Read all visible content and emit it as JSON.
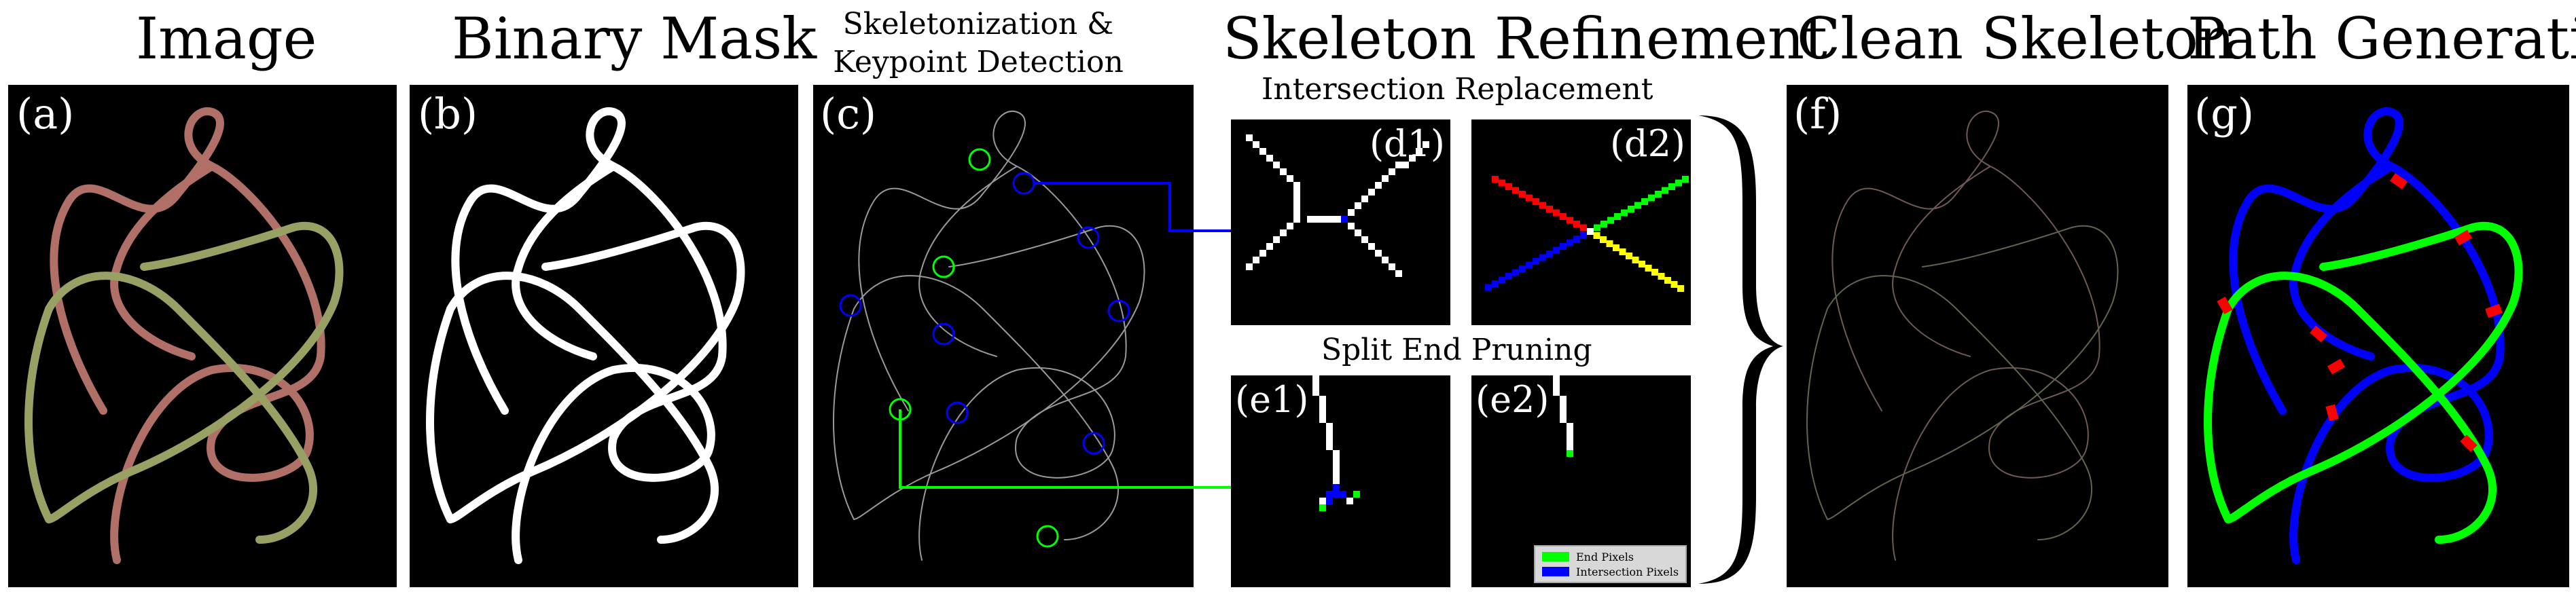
{
  "titles": {
    "image": "Image",
    "mask": "Binary Mask",
    "skel_line1": "Skeletonization &",
    "skel_line2": "Keypoint Detection",
    "refine": "Skeleton Refinement",
    "intersection": "Intersection Replacement",
    "split": "Split End Pruning",
    "clean": "Clean Skeleton",
    "path": "Path Generation"
  },
  "panel_labels": {
    "a": "(a)",
    "b": "(b)",
    "c": "(c)",
    "d1": "(d1)",
    "d2": "(d2)",
    "e1": "(e1)",
    "e2": "(e2)",
    "f": "(f)",
    "g": "(g)"
  },
  "legend": {
    "end_pixels": "End Pixels",
    "intersection_pixels": "Intersection Pixels"
  },
  "colors": {
    "rope1_image": "#b07068",
    "rope2_image": "#98a064",
    "end_pixel": "#00ff00",
    "intersection_pixel": "#0000ff",
    "path_blue": "#0000ff",
    "path_green": "#00ff00",
    "path_red": "#ff0000"
  }
}
